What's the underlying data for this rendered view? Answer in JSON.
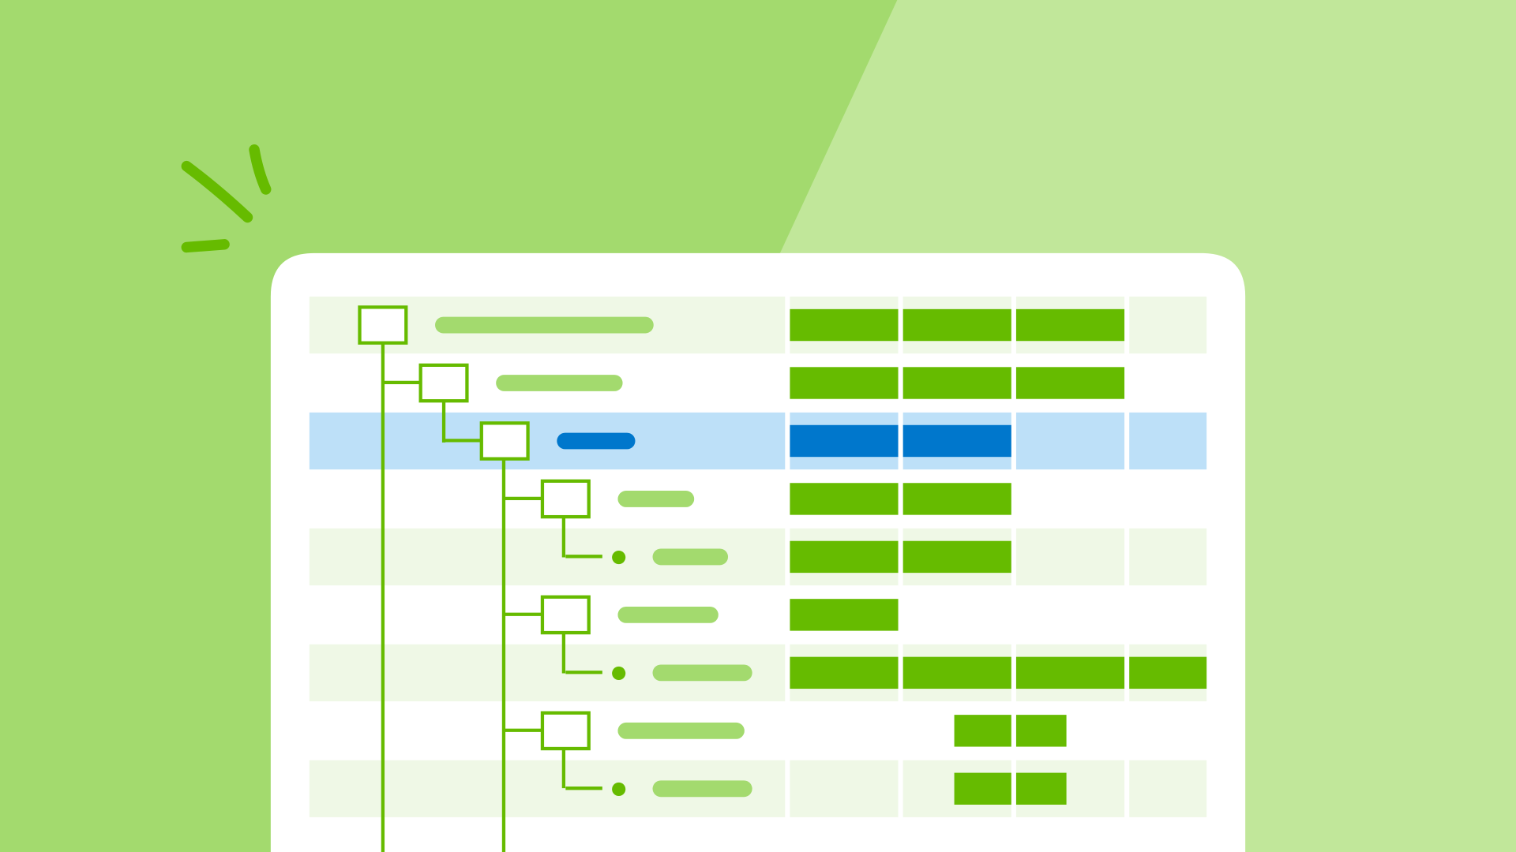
{
  "colors": {
    "background": "#a3da6e",
    "background_light": "#c1e79a",
    "card": "#ffffff",
    "row_shade": "#eff8e6",
    "row_highlight": "#bde0f8",
    "bar_green": "#66bb00",
    "bar_blue": "#0077cc",
    "pill_green": "#a3da6e",
    "tree_line": "#66bb00"
  },
  "icons": [
    "spark-lines-icon",
    "folder-node-icon",
    "leaf-dot-icon"
  ],
  "rows": [
    {
      "level": 0,
      "node": "box",
      "label_units": 226,
      "shaded": true,
      "selected": false,
      "bars": [
        0,
        1,
        2
      ]
    },
    {
      "level": 1,
      "node": "box",
      "label_units": 131,
      "shaded": false,
      "selected": false,
      "bars": [
        0,
        1,
        2
      ]
    },
    {
      "level": 2,
      "node": "box",
      "label_units": 81,
      "shaded": false,
      "selected": true,
      "bars": [
        0,
        1
      ]
    },
    {
      "level": 3,
      "node": "box",
      "label_units": 79,
      "shaded": false,
      "selected": false,
      "bars": [
        0,
        1
      ]
    },
    {
      "level": 4,
      "node": "dot",
      "label_units": 78,
      "shaded": true,
      "selected": false,
      "bars": [
        0,
        1
      ]
    },
    {
      "level": 3,
      "node": "box",
      "label_units": 104,
      "shaded": false,
      "selected": false,
      "bars": [
        0
      ]
    },
    {
      "level": 4,
      "node": "dot",
      "label_units": 103,
      "shaded": true,
      "selected": false,
      "bars": [
        0,
        1,
        2,
        3
      ]
    },
    {
      "level": 3,
      "node": "box",
      "label_units": 131,
      "shaded": false,
      "selected": false,
      "bars": [
        "half-1",
        "half-2"
      ]
    },
    {
      "level": 4,
      "node": "dot",
      "label_units": 103,
      "shaded": true,
      "selected": false,
      "bars": [
        "half-1",
        "half-2"
      ]
    }
  ]
}
